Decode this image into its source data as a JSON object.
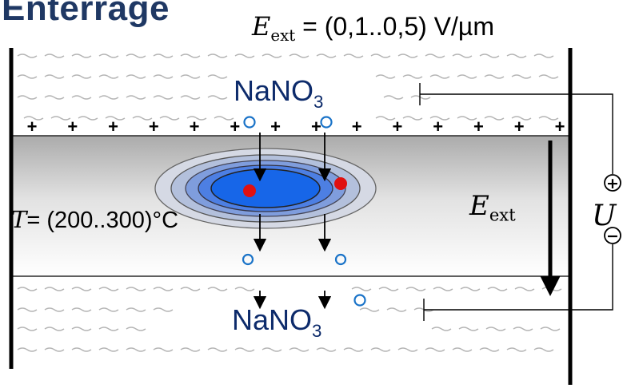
{
  "title": "Enterrage",
  "field_equation": {
    "symbol": "E",
    "subscript": "ext",
    "value": " = (0,1..0,5) V/µm"
  },
  "electrolyte_top": {
    "formula": "NaNO",
    "subscript": "3"
  },
  "electrolyte_bottom": {
    "formula": "NaNO",
    "subscript": "3"
  },
  "field_arrow_label": {
    "symbol": "E",
    "subscript": "ext"
  },
  "temperature": {
    "symbol": "T",
    "value": "= (200..300)°C"
  },
  "voltage_source": {
    "symbol": "U",
    "plus_sign": "+",
    "minus_sign": "−"
  },
  "surface_charges": {
    "sign": "+",
    "count": 14
  },
  "colors": {
    "title": "#1f3864",
    "electrolyte_text": "#0d2b6b",
    "ion_circle": "#1a73c8",
    "particle": "#e01010",
    "core_blue": "#1766e8",
    "wave": "#b4b4b4"
  }
}
